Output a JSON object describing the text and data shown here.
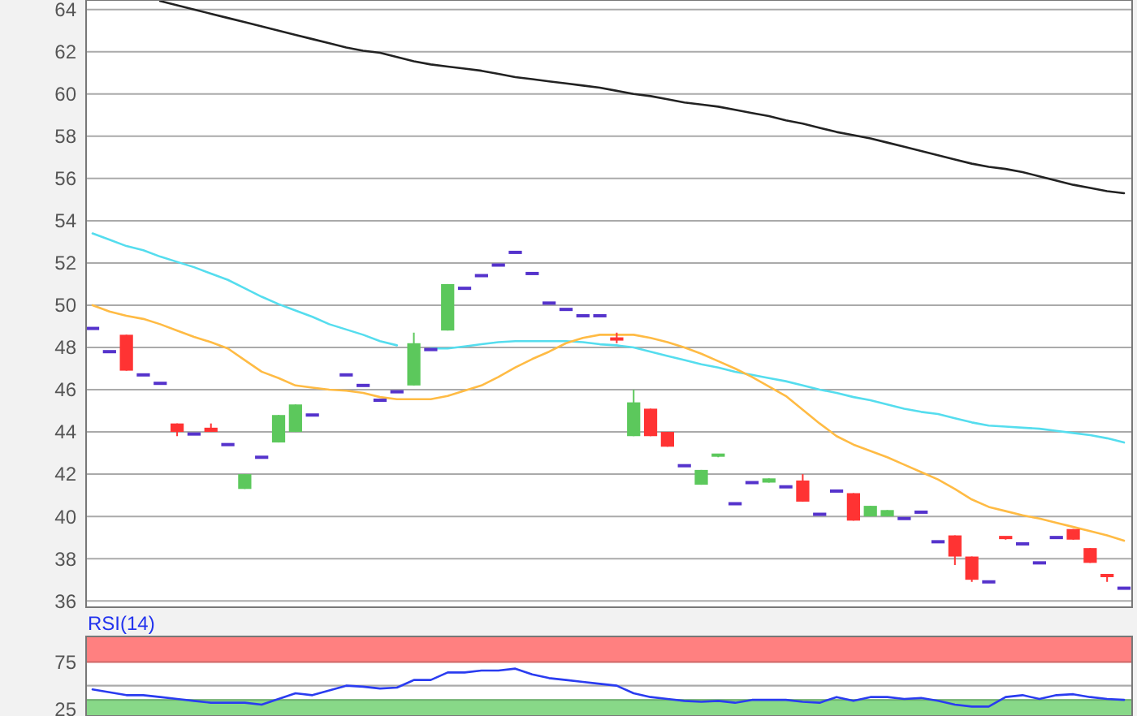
{
  "chart_data": [
    {
      "type": "candlestick",
      "categories": [
        null,
        null,
        null,
        null,
        null,
        null,
        null,
        null,
        null,
        null,
        null,
        null,
        null,
        null,
        null,
        null,
        null,
        null,
        null,
        null,
        null,
        null,
        null,
        null,
        null,
        null,
        null,
        null,
        null,
        null,
        null,
        null,
        null,
        null,
        null,
        null,
        null,
        null,
        null,
        null,
        null,
        null,
        null,
        null,
        null,
        null,
        null,
        null,
        null,
        null,
        null,
        null,
        null,
        null,
        null,
        null,
        null,
        null,
        null,
        null,
        null,
        null
      ],
      "ohlc": [
        [
          48.9,
          48.9,
          48.9,
          48.9
        ],
        [
          47.8,
          47.8,
          47.8,
          47.8
        ],
        [
          48.6,
          48.6,
          46.9,
          46.9
        ],
        [
          46.7,
          46.7,
          46.7,
          46.7
        ],
        [
          46.3,
          46.3,
          46.3,
          46.3
        ],
        [
          44.4,
          44.4,
          43.8,
          44.0
        ],
        [
          43.9,
          43.9,
          43.9,
          43.9
        ],
        [
          44.2,
          44.4,
          44.0,
          44.0
        ],
        [
          43.4,
          43.4,
          43.4,
          43.4
        ],
        [
          41.3,
          42.0,
          41.3,
          42.0
        ],
        [
          42.8,
          42.8,
          42.8,
          42.8
        ],
        [
          43.5,
          44.8,
          43.5,
          44.8
        ],
        [
          44.0,
          45.3,
          44.0,
          45.3
        ],
        [
          44.8,
          44.8,
          44.8,
          44.8
        ],
        null,
        [
          46.7,
          46.7,
          46.7,
          46.7
        ],
        [
          46.2,
          46.2,
          46.2,
          46.2
        ],
        [
          45.5,
          45.5,
          45.5,
          45.5
        ],
        [
          45.9,
          45.9,
          45.9,
          45.9
        ],
        [
          46.2,
          48.7,
          46.2,
          48.2
        ],
        [
          47.9,
          47.9,
          47.9,
          47.9
        ],
        [
          48.8,
          51.0,
          48.8,
          51.0
        ],
        [
          50.8,
          50.8,
          50.8,
          50.8
        ],
        [
          51.4,
          51.4,
          51.4,
          51.4
        ],
        [
          51.9,
          51.9,
          51.9,
          51.9
        ],
        [
          52.5,
          52.5,
          52.5,
          52.5
        ],
        [
          51.5,
          51.5,
          51.5,
          51.5
        ],
        [
          50.1,
          50.1,
          50.1,
          50.1
        ],
        [
          49.8,
          49.8,
          49.8,
          49.8
        ],
        [
          49.5,
          49.5,
          49.5,
          49.5
        ],
        [
          49.5,
          49.5,
          49.5,
          49.5
        ],
        [
          48.4,
          48.7,
          48.2,
          48.3
        ],
        [
          43.8,
          46.0,
          43.8,
          45.4
        ],
        [
          45.1,
          45.1,
          43.8,
          43.8
        ],
        [
          44.0,
          44.0,
          43.3,
          43.3
        ],
        [
          42.4,
          42.4,
          42.4,
          42.4
        ],
        [
          41.5,
          42.2,
          41.5,
          42.2
        ],
        [
          42.8,
          42.9,
          42.8,
          42.9
        ],
        [
          40.6,
          40.6,
          40.6,
          40.6
        ],
        [
          41.6,
          41.6,
          41.6,
          41.6
        ],
        [
          41.6,
          41.8,
          41.6,
          41.8
        ],
        [
          41.4,
          41.4,
          41.4,
          41.4
        ],
        [
          41.7,
          42.0,
          40.7,
          40.7
        ],
        [
          40.1,
          40.1,
          40.1,
          40.1
        ],
        [
          41.2,
          41.2,
          41.2,
          41.2
        ],
        [
          41.1,
          41.1,
          39.8,
          39.8
        ],
        [
          40.0,
          40.5,
          40.0,
          40.5
        ],
        [
          40.0,
          40.3,
          40.0,
          40.3
        ],
        [
          39.9,
          39.9,
          39.9,
          39.9
        ],
        [
          40.2,
          40.2,
          40.2,
          40.2
        ],
        [
          38.8,
          38.8,
          38.8,
          38.8
        ],
        [
          39.1,
          39.1,
          37.7,
          38.1
        ],
        [
          38.1,
          38.1,
          36.9,
          37.0
        ],
        [
          36.9,
          36.9,
          36.9,
          36.9
        ],
        [
          39.0,
          39.0,
          38.9,
          38.9
        ],
        [
          38.7,
          38.7,
          38.7,
          38.7
        ],
        [
          37.8,
          37.8,
          37.8,
          37.8
        ],
        [
          39.0,
          39.0,
          39.0,
          39.0
        ],
        [
          39.4,
          39.4,
          38.9,
          38.9
        ],
        [
          38.5,
          38.5,
          37.8,
          37.8
        ],
        [
          37.2,
          37.2,
          36.9,
          37.1
        ],
        [
          36.6,
          36.6,
          36.6,
          36.6
        ]
      ],
      "colors": [
        "#5533cc",
        "#5533cc",
        "#ff3333",
        "#5533cc",
        "#5533cc",
        "#ff3333",
        "#5533cc",
        "#ff3333",
        "#5533cc",
        "#5cc85c",
        "#5533cc",
        "#5cc85c",
        "#5cc85c",
        "#5533cc",
        null,
        "#5533cc",
        "#5533cc",
        "#5533cc",
        "#5533cc",
        "#5cc85c",
        "#5533cc",
        "#5cc85c",
        "#5533cc",
        "#5533cc",
        "#5533cc",
        "#5533cc",
        "#5533cc",
        "#5533cc",
        "#5533cc",
        "#5533cc",
        "#5533cc",
        "#ff3333",
        "#5cc85c",
        "#ff3333",
        "#ff3333",
        "#5533cc",
        "#5cc85c",
        "#5cc85c",
        "#5533cc",
        "#5533cc",
        "#5cc85c",
        "#5533cc",
        "#ff3333",
        "#5533cc",
        "#5533cc",
        "#ff3333",
        "#5cc85c",
        "#5cc85c",
        "#5533cc",
        "#5533cc",
        "#5533cc",
        "#ff3333",
        "#ff3333",
        "#5533cc",
        "#ff3333",
        "#5533cc",
        "#5533cc",
        "#5533cc",
        "#ff3333",
        "#ff3333",
        "#ff3333",
        "#5533cc"
      ],
      "series": [
        {
          "type": "line",
          "color": "#222222",
          "values": [
            null,
            null,
            null,
            null,
            64.4,
            64.2,
            64.0,
            63.8,
            63.6,
            63.4,
            63.2,
            63.0,
            62.8,
            62.6,
            62.4,
            62.2,
            62.05,
            61.95,
            61.75,
            61.55,
            61.4,
            61.3,
            61.2,
            61.1,
            60.95,
            60.8,
            60.7,
            60.6,
            60.5,
            60.4,
            60.3,
            60.15,
            60.0,
            59.9,
            59.75,
            59.6,
            59.5,
            59.4,
            59.25,
            59.1,
            58.95,
            58.75,
            58.6,
            58.4,
            58.2,
            58.05,
            57.9,
            57.7,
            57.5,
            57.3,
            57.1,
            56.9,
            56.7,
            56.55,
            56.45,
            56.3,
            56.1,
            55.9,
            55.7,
            55.55,
            55.4,
            55.3
          ]
        },
        {
          "type": "line",
          "color": "#55ddee",
          "values": [
            53.4,
            53.1,
            52.8,
            52.6,
            52.3,
            52.05,
            51.8,
            51.5,
            51.2,
            50.8,
            50.4,
            50.05,
            49.75,
            49.45,
            49.1,
            48.85,
            48.6,
            48.3,
            48.1,
            null,
            47.95,
            47.95,
            48.05,
            48.15,
            48.25,
            48.3,
            48.3,
            48.3,
            48.3,
            48.25,
            48.15,
            48.1,
            48.0,
            47.8,
            47.6,
            47.4,
            47.2,
            47.05,
            46.85,
            46.7,
            46.55,
            46.4,
            46.2,
            46.0,
            45.85,
            45.65,
            45.5,
            45.3,
            45.1,
            44.95,
            44.85,
            44.65,
            44.45,
            44.3,
            44.25,
            44.2,
            44.15,
            44.05,
            43.95,
            43.85,
            43.7,
            43.5
          ]
        },
        {
          "type": "line",
          "color": "#ffbb44",
          "values": [
            50.0,
            49.7,
            49.5,
            49.35,
            49.1,
            48.8,
            48.5,
            48.25,
            47.95,
            47.4,
            46.85,
            46.55,
            46.2,
            46.1,
            46.0,
            45.95,
            45.85,
            45.65,
            45.55,
            45.55,
            45.55,
            45.7,
            45.95,
            46.2,
            46.6,
            47.05,
            47.45,
            47.8,
            48.2,
            48.45,
            48.6,
            48.6,
            48.6,
            48.45,
            48.25,
            48.0,
            47.7,
            47.35,
            47.0,
            46.6,
            46.15,
            45.7,
            45.05,
            44.4,
            43.8,
            43.4,
            43.1,
            42.8,
            42.45,
            42.1,
            41.75,
            41.3,
            40.8,
            40.45,
            40.25,
            40.05,
            39.9,
            39.7,
            39.5,
            39.3,
            39.1,
            38.85
          ]
        }
      ],
      "ylim": [
        35.7,
        64.45
      ],
      "yticks": [
        36,
        38,
        40,
        42,
        44,
        46,
        48,
        50,
        52,
        54,
        56,
        58,
        60,
        62,
        64
      ],
      "grid": "y",
      "tick_labels": "y"
    },
    {
      "type": "line",
      "title": "RSI(14)",
      "categories": [
        null,
        null,
        null,
        null,
        null,
        null,
        null,
        null,
        null,
        null,
        null,
        null,
        null,
        null,
        null,
        null,
        null,
        null,
        null,
        null,
        null,
        null,
        null,
        null,
        null,
        null,
        null,
        null,
        null,
        null,
        null,
        null,
        null,
        null,
        null,
        null,
        null,
        null,
        null,
        null,
        null,
        null,
        null,
        null,
        null,
        null,
        null,
        null,
        null,
        null,
        null,
        null,
        null,
        null,
        null,
        null,
        null,
        null,
        null,
        null,
        null,
        null
      ],
      "series": [
        {
          "color": "#2a3cf0",
          "values": [
            46,
            43,
            40,
            40,
            38,
            36,
            34,
            32,
            32,
            32,
            30,
            36,
            42,
            40,
            45,
            50,
            49,
            47,
            48,
            56,
            56,
            64,
            64,
            66,
            66,
            68,
            62,
            58,
            56,
            54,
            52,
            50,
            42,
            38,
            36,
            34,
            33,
            34,
            32,
            35,
            35,
            35,
            33,
            32,
            38,
            34,
            38,
            38,
            36,
            37,
            34,
            30,
            28,
            28,
            38,
            40,
            36,
            40,
            41,
            38,
            36,
            35
          ]
        }
      ],
      "ylim": [
        18,
        102
      ],
      "yticks": [
        25,
        75
      ],
      "tick_labels": "y",
      "bands": [
        {
          "axis": "y",
          "from": 75,
          "to": 102,
          "color": "#ff8080"
        },
        {
          "axis": "y",
          "from": 18,
          "to": 35,
          "color": "#88d888"
        }
      ],
      "ref_lines": [
        {
          "axis": "y",
          "value": 50,
          "color": "#aaaaaa"
        }
      ]
    }
  ]
}
